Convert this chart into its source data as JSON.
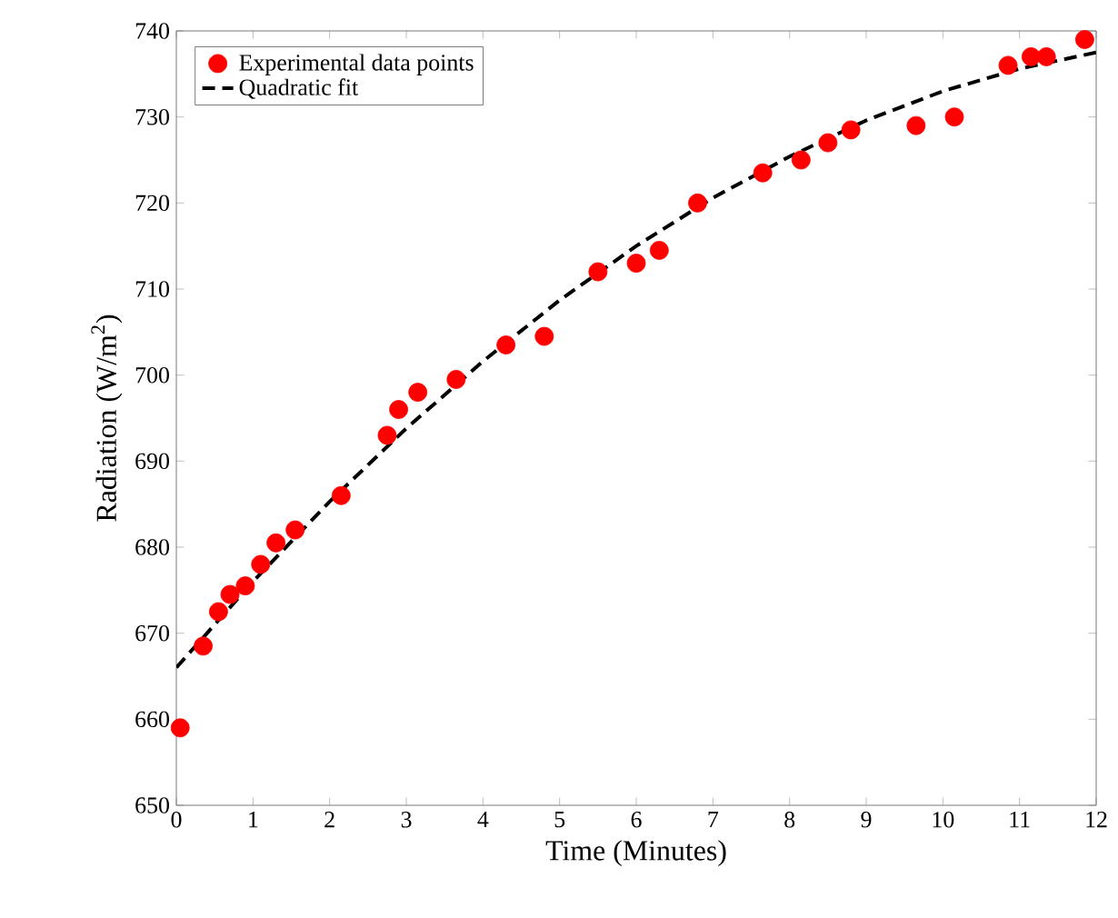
{
  "chart_data": {
    "type": "scatter",
    "xlabel": "Time (Minutes)",
    "ylabel": "Radiation (W/m$^{2}$)",
    "xlim": [
      0,
      12
    ],
    "ylim": [
      650,
      740
    ],
    "xticks": [
      0,
      1,
      2,
      3,
      4,
      5,
      6,
      7,
      8,
      9,
      10,
      11,
      12
    ],
    "yticks": [
      650,
      660,
      670,
      680,
      690,
      700,
      710,
      720,
      730,
      740
    ],
    "legend": "top left",
    "marker": "circle",
    "grid": false,
    "series": [
      {
        "name": "Experimental data points",
        "color": "#ff0000",
        "x": [
          0.05,
          0.35,
          0.55,
          0.7,
          0.9,
          1.1,
          1.3,
          1.55,
          2.15,
          2.75,
          2.9,
          3.15,
          3.65,
          4.3,
          4.8,
          5.5,
          6.0,
          6.3,
          6.8,
          7.65,
          8.15,
          8.5,
          8.8,
          9.65,
          10.15,
          10.85,
          11.15,
          11.35,
          11.85
        ],
        "values": [
          659,
          668.5,
          672.5,
          674.5,
          675.5,
          678,
          680.5,
          682,
          686,
          693,
          696,
          698,
          699.5,
          703.5,
          704.5,
          712,
          713,
          714.5,
          720,
          723.5,
          725,
          727,
          728.5,
          729,
          730,
          736,
          737,
          737,
          739
        ]
      },
      {
        "name": "Quadratic fit",
        "type": "line",
        "marker": "none",
        "line_style": "dashed",
        "color": "#000000",
        "x": [
          0,
          1,
          2,
          3,
          4,
          5,
          6,
          7,
          8,
          9,
          10,
          11,
          12
        ],
        "values": [
          666,
          676,
          685.3,
          693.8,
          701.6,
          708.7,
          715,
          720.6,
          725.4,
          729.6,
          733,
          735.6,
          737.5
        ]
      }
    ]
  }
}
